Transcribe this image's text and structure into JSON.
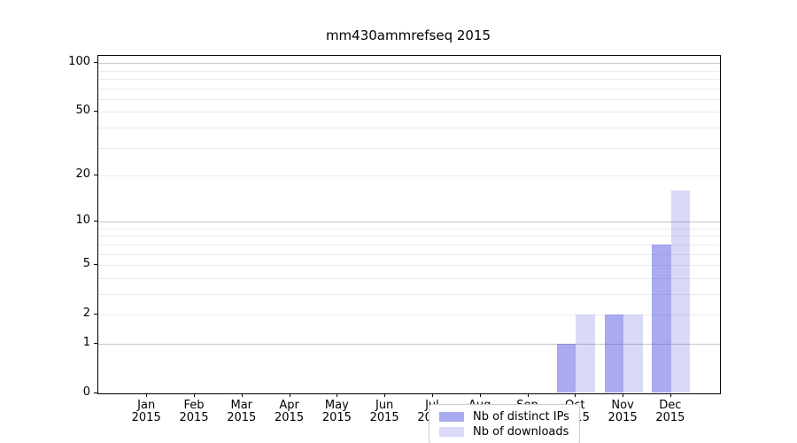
{
  "chart_data": {
    "type": "bar",
    "title": "mm430ammrefseq 2015",
    "xlabel": "",
    "ylabel": "",
    "yscale": "log1p",
    "ylim": [
      0,
      111
    ],
    "yticks": [
      0,
      1,
      2,
      5,
      10,
      20,
      50,
      100
    ],
    "gridlines": {
      "major": [
        1,
        10,
        100
      ],
      "minor": [
        2,
        3,
        4,
        5,
        6,
        7,
        8,
        9,
        20,
        30,
        40,
        50,
        60,
        70,
        80,
        90
      ]
    },
    "categories": [
      [
        "Jan",
        "2015"
      ],
      [
        "Feb",
        "2015"
      ],
      [
        "Mar",
        "2015"
      ],
      [
        "Apr",
        "2015"
      ],
      [
        "May",
        "2015"
      ],
      [
        "Jun",
        "2015"
      ],
      [
        "Jul",
        "2015"
      ],
      [
        "Aug",
        "2015"
      ],
      [
        "Sep",
        "2015"
      ],
      [
        "Oct",
        "2015"
      ],
      [
        "Nov",
        "2015"
      ],
      [
        "Dec",
        "2015"
      ]
    ],
    "series": [
      {
        "name": "Nb of distinct IPs",
        "color": "rgba(66,66,221,0.45)",
        "solid_color": "#aaaaee",
        "values": [
          0,
          0,
          0,
          0,
          0,
          0,
          0,
          0,
          0,
          1,
          2,
          7
        ]
      },
      {
        "name": "Nb of downloads",
        "color": "rgba(66,66,221,0.2)",
        "solid_color": "#d9d9f7",
        "values": [
          0,
          0,
          0,
          0,
          0,
          0,
          0,
          0,
          0,
          2,
          2,
          16
        ]
      }
    ],
    "legend_position": "lower center"
  },
  "colors": {
    "major_grid": "#c6c6c6",
    "minor_grid": "#ebebeb",
    "spine": "#000000",
    "legend_border": "#cccccc",
    "background": "#ffffff",
    "text": "#000000"
  }
}
